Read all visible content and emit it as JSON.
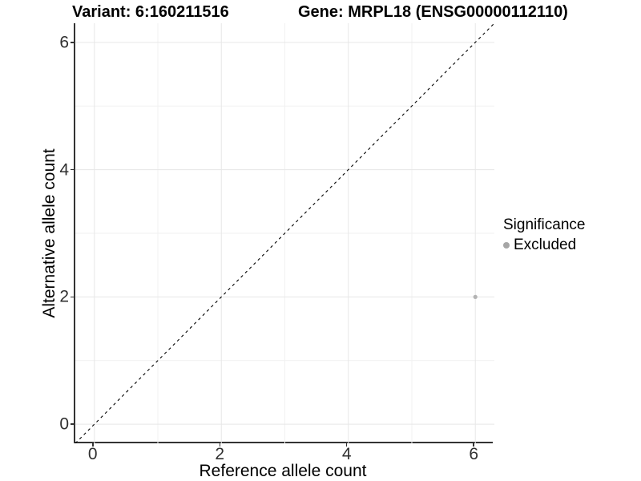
{
  "titles": {
    "variant": "Variant: 6:160211516",
    "gene": "Gene: MRPL18 (ENSG00000112110)"
  },
  "axes": {
    "x_label": "Reference allele count",
    "y_label": "Alternative allele count"
  },
  "legend": {
    "title": "Significance",
    "items": [
      {
        "label": "Excluded",
        "color": "#a6a6a6"
      }
    ]
  },
  "chart_data": {
    "type": "scatter",
    "title": "Variant: 6:160211516 | Gene: MRPL18 (ENSG00000112110)",
    "xlabel": "Reference allele count",
    "ylabel": "Alternative allele count",
    "xlim": [
      -0.3,
      6.3
    ],
    "ylim": [
      -0.3,
      6.3
    ],
    "x_ticks": [
      0,
      2,
      4,
      6
    ],
    "y_ticks": [
      0,
      2,
      4,
      6
    ],
    "minor_ticks": [
      1,
      3,
      5
    ],
    "grid": true,
    "legend_position": "right",
    "reference_line": {
      "type": "identity",
      "slope": 1,
      "intercept": 0,
      "style": "dashed",
      "color": "#000000"
    },
    "series": [
      {
        "name": "Excluded",
        "points": [
          {
            "x": 6,
            "y": 2
          }
        ]
      }
    ],
    "colors": {
      "excluded": "#b3b3b3",
      "legend_dot": "#a6a6a6",
      "grid_major": "#e7e7e7",
      "grid_minor": "#f1f1f1",
      "axis_line": "#333333",
      "diagonal": "#000000"
    }
  }
}
